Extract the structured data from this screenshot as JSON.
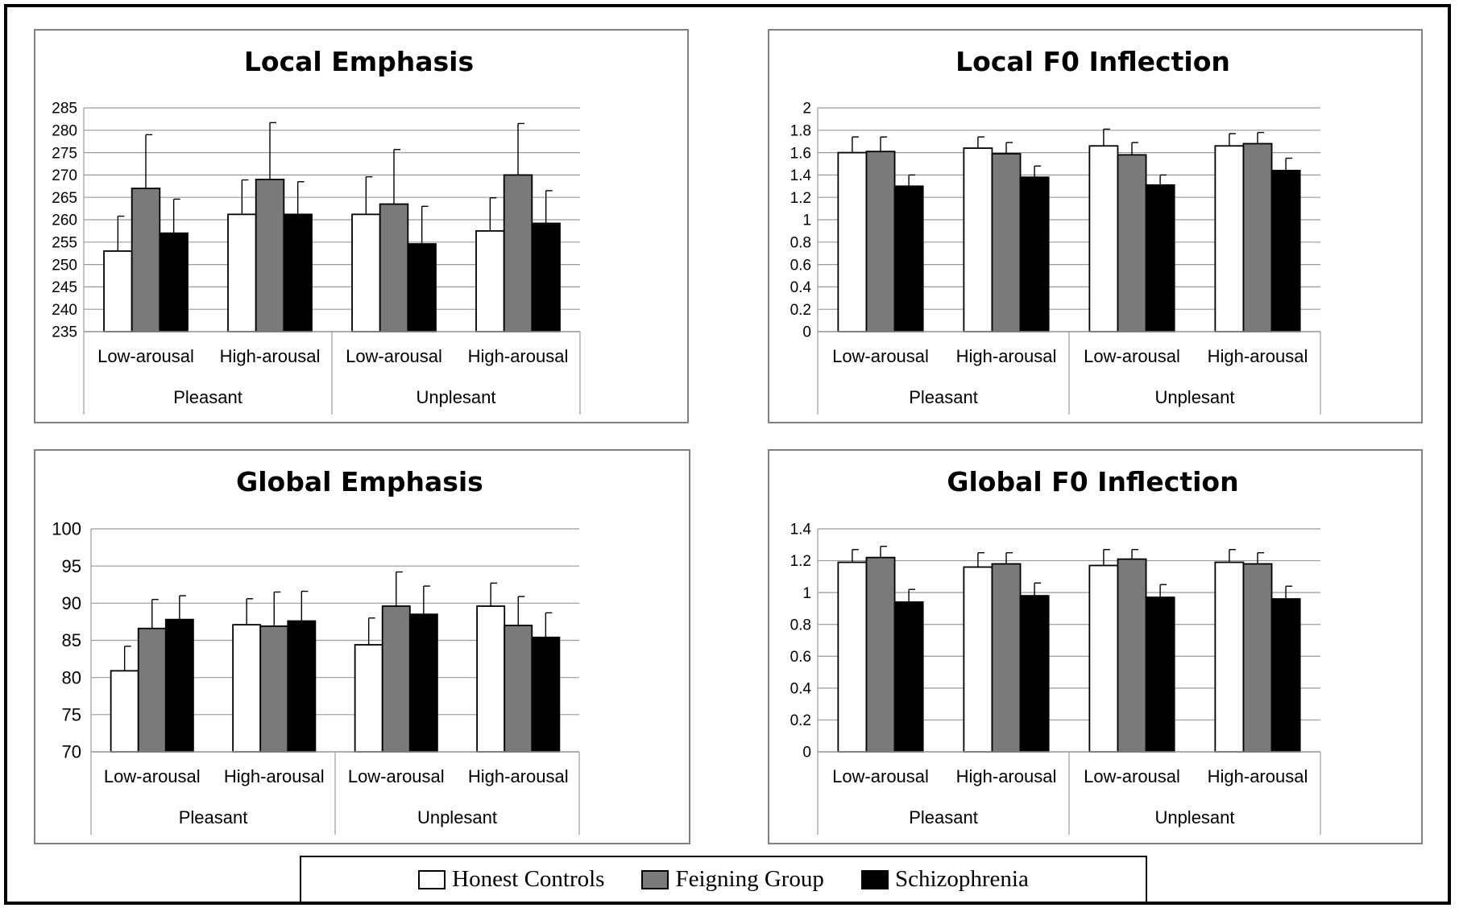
{
  "series": [
    {
      "name": "Honest Controls",
      "color": "#ffffff"
    },
    {
      "name": "Feigning Group",
      "color": "#7a7a7a"
    },
    {
      "name": "Schizophrenia",
      "color": "#000000"
    }
  ],
  "chart_data": [
    {
      "type": "bar",
      "title": "Local Emphasis",
      "categories": [
        "Low-arousal",
        "High-arousal",
        "Low-arousal",
        "High-arousal"
      ],
      "groups": [
        {
          "label": "Pleasant",
          "span": 2
        },
        {
          "label": "Unplesant",
          "span": 2
        }
      ],
      "ylim": [
        235,
        285
      ],
      "yticks": [
        "235",
        "240",
        "245",
        "250",
        "255",
        "260",
        "265",
        "270",
        "275",
        "280",
        "285"
      ],
      "series": [
        {
          "name": "Honest Controls",
          "values": [
            253,
            261.2,
            261.2,
            257.5
          ],
          "errors": [
            7.8,
            7.7,
            8.4,
            7.4
          ]
        },
        {
          "name": "Feigning Group",
          "values": [
            267,
            269,
            263.5,
            270
          ],
          "errors": [
            12,
            12.7,
            12.2,
            11.5
          ]
        },
        {
          "name": "Schizophrenia",
          "values": [
            257,
            261.2,
            254.6,
            259.2
          ],
          "errors": [
            7.6,
            7.3,
            8.4,
            7.3
          ]
        }
      ]
    },
    {
      "type": "bar",
      "title": "Local F0 Inflection",
      "categories": [
        "Low-arousal",
        "High-arousal",
        "Low-arousal",
        "High-arousal"
      ],
      "groups": [
        {
          "label": "Pleasant",
          "span": 2
        },
        {
          "label": "Unplesant",
          "span": 2
        }
      ],
      "ylim": [
        0,
        2
      ],
      "yticks": [
        "0",
        "0.2",
        "0.4",
        "0.6",
        "0.8",
        "1",
        "1.2",
        "1.4",
        "1.6",
        "1.8",
        "2"
      ],
      "series": [
        {
          "name": "Honest Controls",
          "values": [
            1.6,
            1.64,
            1.66,
            1.66
          ],
          "errors": [
            0.14,
            0.1,
            0.15,
            0.11
          ]
        },
        {
          "name": "Feigning Group",
          "values": [
            1.61,
            1.59,
            1.58,
            1.68
          ],
          "errors": [
            0.13,
            0.1,
            0.11,
            0.1
          ]
        },
        {
          "name": "Schizophrenia",
          "values": [
            1.3,
            1.38,
            1.31,
            1.44
          ],
          "errors": [
            0.1,
            0.1,
            0.09,
            0.11
          ]
        }
      ]
    },
    {
      "type": "bar",
      "title": "Global Emphasis",
      "categories": [
        "Low-arousal",
        "High-arousal",
        "Low-arousal",
        "High-arousal"
      ],
      "groups": [
        {
          "label": "Pleasant",
          "span": 2
        },
        {
          "label": "Unplesant",
          "span": 2
        }
      ],
      "ylim": [
        70,
        100
      ],
      "yticks": [
        "70",
        "75",
        "80",
        "85",
        "90",
        "95",
        "100"
      ],
      "series": [
        {
          "name": "Honest Controls",
          "values": [
            80.9,
            87.1,
            84.4,
            89.6
          ],
          "errors": [
            3.3,
            3.5,
            3.6,
            3.1
          ]
        },
        {
          "name": "Feigning Group",
          "values": [
            86.6,
            86.9,
            89.6,
            87
          ],
          "errors": [
            3.9,
            4.6,
            4.6,
            3.9
          ]
        },
        {
          "name": "Schizophrenia",
          "values": [
            87.8,
            87.6,
            88.5,
            85.4
          ],
          "errors": [
            3.2,
            4,
            3.8,
            3.3
          ]
        }
      ]
    },
    {
      "type": "bar",
      "title": "Global F0 Inflection",
      "categories": [
        "Low-arousal",
        "High-arousal",
        "Low-arousal",
        "High-arousal"
      ],
      "groups": [
        {
          "label": "Pleasant",
          "span": 2
        },
        {
          "label": "Unplesant",
          "span": 2
        }
      ],
      "ylim": [
        0,
        1.4
      ],
      "yticks": [
        "0",
        "0.2",
        "0.4",
        "0.6",
        "0.8",
        "1",
        "1.2",
        "1.4"
      ],
      "series": [
        {
          "name": "Honest Controls",
          "values": [
            1.19,
            1.16,
            1.17,
            1.19
          ],
          "errors": [
            0.08,
            0.09,
            0.1,
            0.08
          ]
        },
        {
          "name": "Feigning Group",
          "values": [
            1.22,
            1.18,
            1.21,
            1.18
          ],
          "errors": [
            0.07,
            0.07,
            0.06,
            0.07
          ]
        },
        {
          "name": "Schizophrenia",
          "values": [
            0.94,
            0.98,
            0.97,
            0.96
          ],
          "errors": [
            0.08,
            0.08,
            0.08,
            0.08
          ]
        }
      ]
    }
  ]
}
